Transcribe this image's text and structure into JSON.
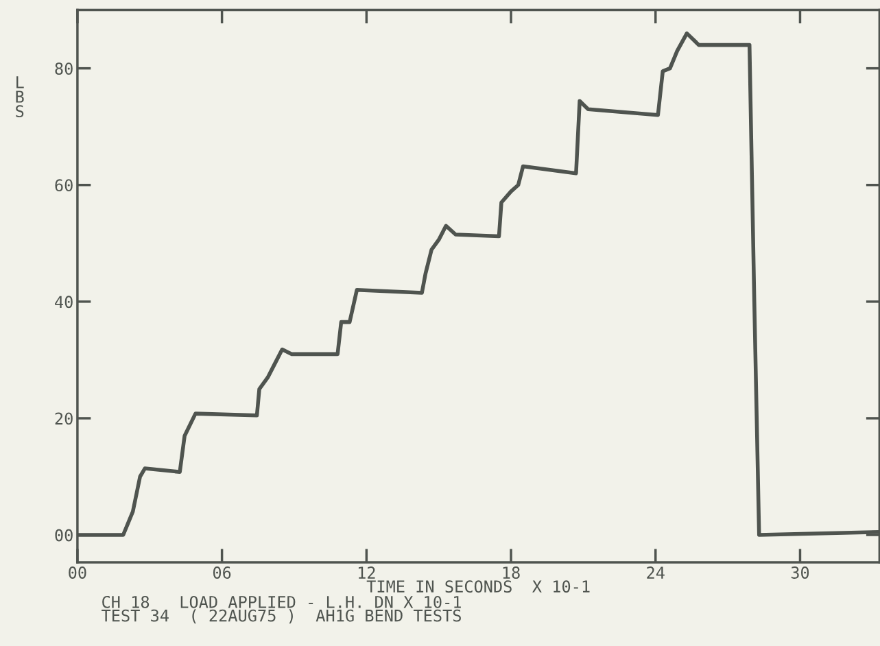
{
  "chart_data": {
    "type": "line",
    "xlabel": "TIME IN SECONDS  X 10-1",
    "ylabel": "LBS",
    "annotations": [
      "CH 18   LOAD APPLIED - L.H. DN X 10-1",
      "TEST 34  ( 22AUG75 )  AH1G BEND TESTS"
    ],
    "series": [
      {
        "color": "#4f544f",
        "x": [
          0,
          1.9,
          2.3,
          2.6,
          2.8,
          4.25,
          4.45,
          4.9,
          7.45,
          7.55,
          7.9,
          8.15,
          8.5,
          8.9,
          10.8,
          10.95,
          11.3,
          11.6,
          14.3,
          14.45,
          14.7,
          15.0,
          15.3,
          15.7,
          17.5,
          17.6,
          18.0,
          18.3,
          18.5,
          20.7,
          20.85,
          21.2,
          24.1,
          24.3,
          24.6,
          24.9,
          25.3,
          25.8,
          27.9,
          28.1,
          28.3,
          33.3
        ],
        "values": [
          0,
          0,
          4,
          10,
          11.4,
          10.8,
          17,
          20.8,
          20.5,
          25,
          27,
          29,
          31.8,
          31,
          31,
          36.5,
          36.5,
          42,
          41.5,
          44.8,
          48.9,
          50.6,
          53,
          51.5,
          51.2,
          57,
          58.9,
          60,
          63.2,
          62,
          74.4,
          73,
          72,
          79.5,
          80,
          83,
          86,
          84,
          84,
          40,
          0,
          0.5
        ]
      }
    ],
    "xlim": [
      0,
      33.3
    ],
    "ylim": [
      -4.7,
      90
    ],
    "xticks": [
      {
        "value": 0,
        "label": "00"
      },
      {
        "value": 6,
        "label": "06"
      },
      12,
      18,
      24,
      30
    ],
    "yticks": [
      {
        "value": 0,
        "label": "00"
      },
      20,
      40,
      60,
      80
    ],
    "grid": false,
    "marker": "none",
    "line_style": "solid"
  }
}
